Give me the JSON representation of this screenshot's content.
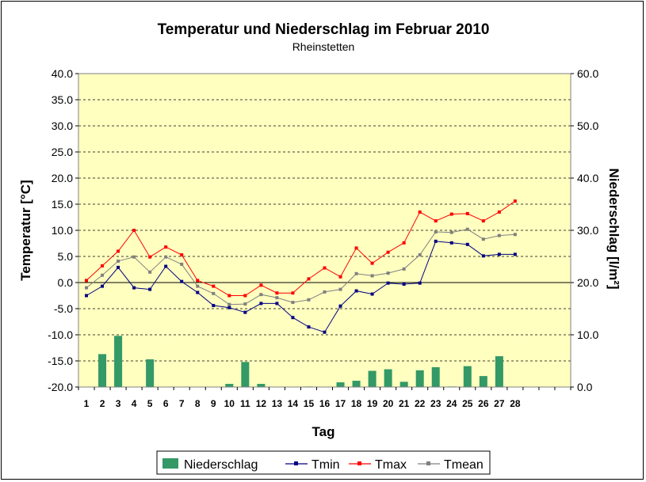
{
  "chart_data": {
    "type": "bar+line",
    "title": "Temperatur und Niederschlag im Februar 2010",
    "subtitle": "Rheinstetten",
    "xlabel": "Tag",
    "ylabel_left": "Temperatur [°C]",
    "ylabel_right": "Niederschlag [l/m²]",
    "ylim_left": [
      -20,
      40
    ],
    "ylim_right": [
      0,
      60
    ],
    "yticks_left": [
      "40.0",
      "35.0",
      "30.0",
      "25.0",
      "20.0",
      "15.0",
      "10.0",
      "5.0",
      "0.0",
      "-5.0",
      "-10.0",
      "-15.0",
      "-20.0"
    ],
    "yticks_right": [
      "60.0",
      "50.0",
      "40.0",
      "30.0",
      "20.0",
      "10.0",
      "0.0"
    ],
    "categories": [
      "1",
      "2",
      "3",
      "4",
      "5",
      "6",
      "7",
      "8",
      "9",
      "10",
      "11",
      "12",
      "13",
      "14",
      "15",
      "16",
      "17",
      "18",
      "19",
      "20",
      "21",
      "22",
      "23",
      "24",
      "25",
      "26",
      "27",
      "28"
    ],
    "grid": true,
    "legend_position": "bottom",
    "colors": {
      "plot_bg": "#ffffc0",
      "bar": "#339966",
      "tmin": "#000080",
      "tmax": "#ff0000",
      "tmean": "#808080"
    },
    "bars": {
      "name": "Niederschlag",
      "axis": "right",
      "values": [
        0,
        6.3,
        9.8,
        0,
        5.3,
        0,
        0,
        0,
        0,
        0.6,
        4.8,
        0.6,
        0,
        0,
        0.1,
        0,
        0.9,
        1.2,
        3.1,
        3.4,
        1.0,
        3.2,
        3.8,
        0.1,
        4.0,
        2.1,
        5.9,
        0
      ]
    },
    "series": [
      {
        "name": "Tmin",
        "axis": "left",
        "values": [
          -2.5,
          -0.7,
          2.9,
          -1.0,
          -1.3,
          3.1,
          0.2,
          -1.9,
          -4.4,
          -4.8,
          -5.7,
          -4.0,
          -4.0,
          -6.7,
          -8.5,
          -9.5,
          -4.5,
          -1.6,
          -2.2,
          -0.1,
          -0.3,
          -0.1,
          7.9,
          7.6,
          7.3,
          5.1,
          5.4,
          5.4
        ]
      },
      {
        "name": "Tmax",
        "axis": "left",
        "values": [
          0.4,
          3.2,
          6.0,
          10.0,
          4.9,
          6.8,
          5.3,
          0.4,
          -0.7,
          -2.5,
          -2.5,
          -0.5,
          -2.0,
          -2.0,
          0.7,
          2.8,
          1.1,
          6.6,
          3.7,
          5.8,
          7.6,
          13.5,
          11.8,
          13.1,
          13.2,
          11.8,
          13.5,
          15.6
        ]
      },
      {
        "name": "Tmean",
        "axis": "left",
        "values": [
          -1.0,
          1.4,
          4.1,
          4.9,
          2.0,
          4.9,
          3.5,
          -0.7,
          -2.1,
          -4.2,
          -4.1,
          -2.3,
          -2.9,
          -3.8,
          -3.3,
          -1.8,
          -1.3,
          1.7,
          1.3,
          1.8,
          2.6,
          5.3,
          9.7,
          9.6,
          10.2,
          8.3,
          9.0,
          9.2
        ]
      }
    ],
    "legend": [
      {
        "label": "Niederschlag",
        "kind": "bar"
      },
      {
        "label": "Tmin",
        "kind": "line",
        "color": "#000080"
      },
      {
        "label": "Tmax",
        "kind": "line",
        "color": "#ff0000"
      },
      {
        "label": "Tmean",
        "kind": "line",
        "color": "#808080"
      }
    ]
  }
}
